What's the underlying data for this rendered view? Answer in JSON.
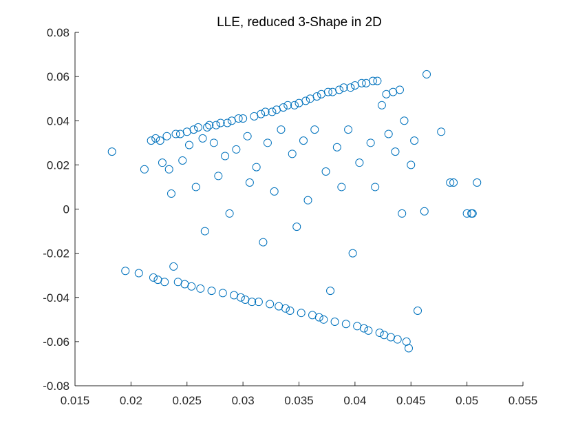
{
  "chart_data": {
    "type": "scatter",
    "title": "LLE, reduced 3-Shape in 2D",
    "xlabel": "",
    "ylabel": "",
    "xlim": [
      0.015,
      0.055
    ],
    "ylim": [
      -0.08,
      0.08
    ],
    "xticks": [
      0.015,
      0.02,
      0.025,
      0.03,
      0.035,
      0.04,
      0.045,
      0.05,
      0.055
    ],
    "xtick_labels": [
      "0.015",
      "0.02",
      "0.025",
      "0.03",
      "0.035",
      "0.04",
      "0.045",
      "0.05",
      "0.055"
    ],
    "yticks": [
      0.08,
      0.06,
      0.04,
      0.02,
      0,
      -0.02,
      -0.04,
      -0.06,
      -0.08
    ],
    "ytick_labels": [
      "0.08",
      "0.06",
      "0.04",
      "0.02",
      "0",
      "-0.02",
      "-0.04",
      "-0.06",
      "-0.08"
    ],
    "grid": false,
    "marker": "open-circle",
    "color": "#0072BD",
    "series": [
      {
        "x": [
          0.0183,
          0.0195,
          0.0207,
          0.0212,
          0.0218,
          0.022,
          0.0222,
          0.0224,
          0.0226,
          0.0228,
          0.023,
          0.0232,
          0.0234,
          0.0236,
          0.0238,
          0.024,
          0.0242,
          0.0244,
          0.0246,
          0.0248,
          0.025,
          0.0252,
          0.0254,
          0.0256,
          0.0258,
          0.026,
          0.0262,
          0.0264,
          0.0266,
          0.0268,
          0.027,
          0.0272,
          0.0274,
          0.0276,
          0.0278,
          0.028,
          0.0282,
          0.0284,
          0.0286,
          0.0288,
          0.029,
          0.0292,
          0.0294,
          0.0296,
          0.0298,
          0.03,
          0.0302,
          0.0304,
          0.0306,
          0.0308,
          0.031,
          0.0312,
          0.0314,
          0.0316,
          0.0318,
          0.032,
          0.0322,
          0.0324,
          0.0326,
          0.0328,
          0.033,
          0.0332,
          0.0334,
          0.0336,
          0.0338,
          0.034,
          0.0342,
          0.0344,
          0.0346,
          0.0348,
          0.035,
          0.0352,
          0.0354,
          0.0356,
          0.0358,
          0.036,
          0.0362,
          0.0364,
          0.0366,
          0.0368,
          0.037,
          0.0372,
          0.0374,
          0.0376,
          0.0378,
          0.038,
          0.0382,
          0.0384,
          0.0386,
          0.0388,
          0.039,
          0.0392,
          0.0394,
          0.0396,
          0.0398,
          0.04,
          0.0402,
          0.0404,
          0.0406,
          0.0408,
          0.041,
          0.0412,
          0.0414,
          0.0416,
          0.0418,
          0.042,
          0.0422,
          0.0424,
          0.0426,
          0.0428,
          0.043,
          0.0432,
          0.0434,
          0.0436,
          0.0438,
          0.044,
          0.0442,
          0.0444,
          0.0446,
          0.0448,
          0.045,
          0.0453,
          0.0456,
          0.0462,
          0.0464,
          0.0477,
          0.0485,
          0.0488,
          0.05,
          0.0504,
          0.0505,
          0.0509
        ],
        "y": [
          0.026,
          -0.028,
          -0.029,
          0.018,
          0.031,
          -0.031,
          0.032,
          -0.032,
          0.031,
          0.021,
          -0.033,
          0.033,
          0.018,
          0.007,
          -0.026,
          0.034,
          -0.033,
          0.034,
          0.022,
          -0.034,
          0.035,
          0.029,
          -0.035,
          0.036,
          0.01,
          0.037,
          -0.036,
          0.032,
          -0.01,
          0.037,
          0.038,
          -0.037,
          0.03,
          0.038,
          0.015,
          0.039,
          -0.038,
          0.024,
          0.039,
          -0.002,
          0.04,
          -0.039,
          0.027,
          0.041,
          -0.04,
          0.041,
          -0.041,
          0.033,
          0.012,
          -0.042,
          0.042,
          0.019,
          -0.042,
          0.043,
          -0.015,
          0.044,
          0.03,
          -0.043,
          0.044,
          0.008,
          0.045,
          -0.044,
          0.036,
          0.046,
          -0.045,
          0.047,
          -0.046,
          0.025,
          0.047,
          -0.008,
          0.048,
          -0.047,
          0.031,
          0.049,
          0.004,
          0.05,
          -0.048,
          0.036,
          0.051,
          -0.049,
          0.052,
          -0.05,
          0.017,
          0.053,
          -0.037,
          0.053,
          -0.051,
          0.028,
          0.054,
          0.01,
          0.055,
          -0.052,
          0.036,
          0.055,
          -0.02,
          0.056,
          -0.053,
          0.021,
          0.057,
          -0.054,
          0.057,
          -0.055,
          0.03,
          0.058,
          0.01,
          0.058,
          -0.056,
          0.047,
          -0.057,
          0.052,
          0.034,
          -0.058,
          0.053,
          0.026,
          -0.059,
          0.054,
          -0.002,
          0.04,
          -0.06,
          -0.063,
          0.02,
          0.031,
          -0.046,
          -0.001,
          0.061,
          0.035,
          0.012,
          0.012,
          -0.002,
          -0.002,
          -0.002,
          0.012
        ]
      }
    ]
  }
}
